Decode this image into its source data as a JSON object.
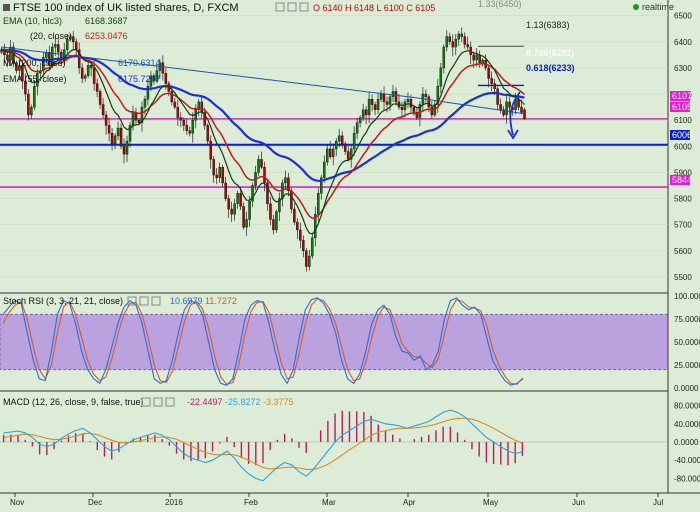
{
  "colors": {
    "background": "#dcecd6",
    "bull": "#0a7a0a",
    "bear": "#b00000",
    "ema10": "#123d12",
    "ma200": "#1b55b0",
    "ema55": "#1c2fd6",
    "ema_red": "#c41a1a",
    "magenta": "#e020d0",
    "hline_blue": "#0b1fc8",
    "rsi_band": "#b9a2de",
    "rsi_k": "#2b6fd6",
    "rsi_d": "#e0552a",
    "macd": "#2aa3e0",
    "signal": "#e08a1a",
    "hist": "#c2185b"
  },
  "header": {
    "title": "FTSE 100 index of UK listed shares, D, FXCM",
    "ohlc": "O 6140  H 6148  L 6100  C 6105",
    "realtime": "realtime",
    "ind1": "EMA (10, hlc3)",
    "ind1_val": "6168.3687",
    "ind2": "(20, close)",
    "ind2_val": "6253.0476",
    "ind3": "MA (200, close)",
    "ind3_val": "6170.6314",
    "ind4": "EMA (55, close)",
    "ind4_val": "6175.7297"
  },
  "annotations": {
    "fib_133": "1.33(6450)",
    "fib_113": "1.13(6383)",
    "fib_786": "0.786(6282)",
    "fib_618": "0.618(6233)",
    "magenta_line_label": "6105",
    "price_tag": "6107",
    "support_label": "6006",
    "low_label": "5844"
  },
  "price_axis": {
    "ticks": [
      "6500",
      "6400",
      "6300",
      "6200",
      "6100",
      "6000",
      "5900",
      "5800",
      "5700",
      "5600",
      "5500"
    ]
  },
  "stoch": {
    "title": "Stoch RSI (3, 3, 21, 21, close)",
    "k_val": "10.6979",
    "d_val": "11.7272",
    "ticks": [
      "100.0000",
      "75.0000",
      "50.0000",
      "25.0000",
      "0.0000"
    ]
  },
  "macd": {
    "title": "MACD (12, 26, close, 9, false, true)",
    "v1": "-22.4497",
    "v2": "-25.8272",
    "v3": "-3.3775",
    "ticks": [
      "80.0000",
      "40.0000",
      "0.0000",
      "-40.0000",
      "-80.0000"
    ]
  },
  "time_axis": {
    "labels": [
      "Nov",
      "Dec",
      "2016",
      "Feb",
      "Mar",
      "Apr",
      "May",
      "Jun",
      "Jul"
    ]
  },
  "chart_data": {
    "type": "candlestick",
    "title": "FTSE 100 index of UK listed shares, D, FXCM",
    "y_range": [
      5450,
      6560
    ],
    "period": "Daily",
    "last_ohlc": {
      "open": 6140,
      "high": 6148,
      "low": 6100,
      "close": 6105
    },
    "levels": [
      {
        "label": "1.33",
        "value": 6450
      },
      {
        "label": "1.13",
        "value": 6383
      },
      {
        "label": "0.786",
        "value": 6282
      },
      {
        "label": "0.618",
        "value": 6233
      },
      {
        "label": "magenta",
        "value": 6105
      },
      {
        "label": "support",
        "value": 6006
      },
      {
        "label": "low",
        "value": 5844
      }
    ],
    "closes": [
      6370,
      6350,
      6330,
      6380,
      6320,
      6290,
      6310,
      6250,
      6200,
      6120,
      6150,
      6230,
      6280,
      6290,
      6340,
      6360,
      6310,
      6380,
      6390,
      6360,
      6330,
      6370,
      6410,
      6420,
      6400,
      6370,
      6300,
      6260,
      6270,
      6310,
      6300,
      6240,
      6210,
      6160,
      6120,
      6080,
      6050,
      6010,
      6040,
      6070,
      6000,
      5970,
      6020,
      6080,
      6130,
      6100,
      6090,
      6150,
      6180,
      6230,
      6270,
      6250,
      6290,
      6320,
      6280,
      6240,
      6210,
      6170,
      6150,
      6110,
      6100,
      6080,
      6060,
      6050,
      6100,
      6140,
      6170,
      6130,
      6080,
      6020,
      5950,
      5890,
      5880,
      5920,
      5860,
      5800,
      5760,
      5740,
      5780,
      5820,
      5770,
      5690,
      5720,
      5790,
      5850,
      5900,
      5950,
      5920,
      5860,
      5780,
      5720,
      5680,
      5750,
      5800,
      5860,
      5880,
      5830,
      5760,
      5710,
      5680,
      5640,
      5600,
      5540,
      5580,
      5650,
      5740,
      5820,
      5880,
      5940,
      5990,
      5960,
      5990,
      6020,
      6040,
      6010,
      5980,
      5950,
      5990,
      6050,
      6090,
      6110,
      6140,
      6120,
      6180,
      6160,
      6140,
      6180,
      6200,
      6170,
      6160,
      6190,
      6210,
      6170,
      6150,
      6140,
      6170,
      6180,
      6150,
      6130,
      6110,
      6160,
      6200,
      6190,
      6150,
      6120,
      6160,
      6230,
      6300,
      6380,
      6420,
      6400,
      6380,
      6410,
      6430,
      6420,
      6390,
      6380,
      6350,
      6330,
      6350,
      6320,
      6330,
      6300,
      6260,
      6240,
      6220,
      6160,
      6140,
      6120,
      6170,
      6150,
      6140,
      6180,
      6150,
      6130,
      6105
    ],
    "stoch_k": [
      80,
      88,
      95,
      92,
      60,
      30,
      10,
      8,
      40,
      80,
      95,
      92,
      70,
      40,
      20,
      10,
      5,
      20,
      45,
      70,
      88,
      95,
      90,
      70,
      40,
      10,
      5,
      8,
      30,
      60,
      85,
      95,
      92,
      80,
      50,
      20,
      5,
      3,
      10,
      40,
      75,
      90,
      95,
      93,
      70,
      40,
      15,
      5,
      20,
      55,
      85,
      96,
      98,
      92,
      80,
      60,
      30,
      10,
      5,
      15,
      40,
      70,
      85,
      90,
      80,
      55,
      40,
      38,
      30,
      35,
      20,
      25,
      40,
      75,
      95,
      98,
      90,
      85,
      88,
      80,
      55,
      30,
      18,
      8,
      3,
      5,
      10
    ],
    "stoch_d": [
      70,
      82,
      90,
      94,
      75,
      45,
      20,
      10,
      25,
      60,
      88,
      94,
      80,
      55,
      30,
      15,
      8,
      12,
      32,
      58,
      80,
      92,
      93,
      80,
      55,
      25,
      8,
      6,
      18,
      45,
      72,
      90,
      94,
      86,
      65,
      35,
      12,
      4,
      6,
      25,
      58,
      83,
      93,
      94,
      82,
      55,
      28,
      10,
      12,
      38,
      70,
      90,
      97,
      95,
      86,
      70,
      45,
      20,
      8,
      10,
      28,
      55,
      78,
      88,
      85,
      68,
      48,
      40,
      34,
      33,
      27,
      22,
      32,
      58,
      85,
      96,
      94,
      88,
      87,
      84,
      68,
      42,
      25,
      13,
      5,
      4,
      11
    ],
    "macd_line": [
      20,
      22,
      24,
      20,
      10,
      -5,
      -10,
      -5,
      8,
      18,
      25,
      30,
      20,
      5,
      -10,
      -20,
      -15,
      -5,
      5,
      10,
      15,
      20,
      15,
      5,
      -10,
      -25,
      -35,
      -40,
      -45,
      -40,
      -30,
      -20,
      -35,
      -55,
      -70,
      -80,
      -85,
      -70,
      -55,
      -45,
      -50,
      -65,
      -75,
      -60,
      -40,
      -20,
      0,
      15,
      25,
      35,
      45,
      50,
      45,
      40,
      38,
      35,
      30,
      35,
      40,
      45,
      55,
      65,
      70,
      65,
      55,
      40,
      25,
      10,
      0,
      -10,
      -20,
      -25,
      -22
    ],
    "macd_signal": [
      10,
      12,
      15,
      17,
      16,
      12,
      8,
      5,
      6,
      9,
      13,
      18,
      19,
      16,
      10,
      4,
      -1,
      -2,
      0,
      3,
      6,
      10,
      11,
      10,
      6,
      -1,
      -9,
      -16,
      -23,
      -27,
      -28,
      -27,
      -28,
      -33,
      -40,
      -48,
      -56,
      -59,
      -58,
      -56,
      -55,
      -57,
      -60,
      -60,
      -56,
      -49,
      -39,
      -28,
      -17,
      -7,
      4,
      14,
      21,
      25,
      28,
      30,
      30,
      31,
      33,
      35,
      39,
      44,
      49,
      52,
      52,
      50,
      45,
      38,
      30,
      21,
      12,
      4,
      -3
    ]
  }
}
